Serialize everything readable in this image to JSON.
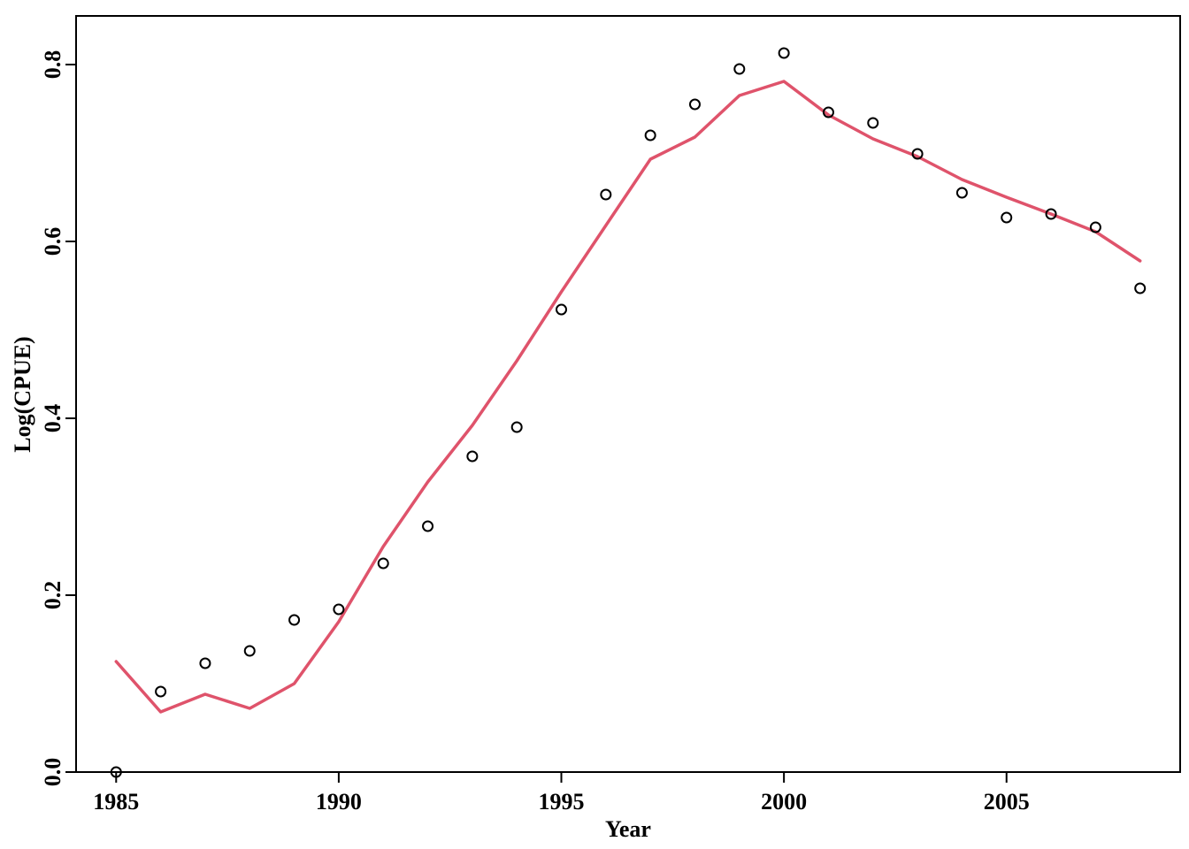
{
  "chart_data": {
    "type": "scatter",
    "title": "",
    "xlabel": "Year",
    "ylabel": "Log(CPUE)",
    "xlim": [
      1984.1,
      2008.9
    ],
    "ylim": [
      0.0,
      0.855
    ],
    "x_ticks": [
      1985,
      1990,
      1995,
      2000,
      2005
    ],
    "x_tick_labels": [
      "1985",
      "1990",
      "1995",
      "2000",
      "2005"
    ],
    "y_ticks": [
      0.0,
      0.2,
      0.4,
      0.6,
      0.8
    ],
    "y_tick_labels": [
      "0.0",
      "0.2",
      "0.4",
      "0.6",
      "0.8"
    ],
    "grid": false,
    "legend": "none",
    "series": [
      {
        "kind": "points",
        "marker": "open-circle",
        "color": "#000000",
        "x": [
          1985,
          1986,
          1987,
          1988,
          1989,
          1990,
          1991,
          1992,
          1993,
          1994,
          1995,
          1996,
          1997,
          1998,
          1999,
          2000,
          2001,
          2002,
          2003,
          2004,
          2005,
          2006,
          2007,
          2008
        ],
        "y": [
          0.0,
          0.091,
          0.123,
          0.137,
          0.172,
          0.184,
          0.236,
          0.278,
          0.357,
          0.39,
          0.523,
          0.653,
          0.72,
          0.755,
          0.795,
          0.813,
          0.746,
          0.734,
          0.699,
          0.655,
          0.627,
          0.631,
          0.616,
          0.547
        ]
      },
      {
        "kind": "line",
        "color": "#DF536B",
        "x": [
          1985,
          1986,
          1987,
          1988,
          1989,
          1990,
          1991,
          1992,
          1993,
          1994,
          1995,
          1996,
          1997,
          1998,
          1999,
          2000,
          2001,
          2002,
          2003,
          2004,
          2005,
          2006,
          2007,
          2008
        ],
        "y": [
          0.125,
          0.068,
          0.088,
          0.072,
          0.1,
          0.17,
          0.255,
          0.328,
          0.392,
          0.465,
          0.543,
          0.618,
          0.693,
          0.718,
          0.765,
          0.781,
          0.743,
          0.716,
          0.696,
          0.67,
          0.65,
          0.631,
          0.611,
          0.578
        ]
      }
    ]
  }
}
